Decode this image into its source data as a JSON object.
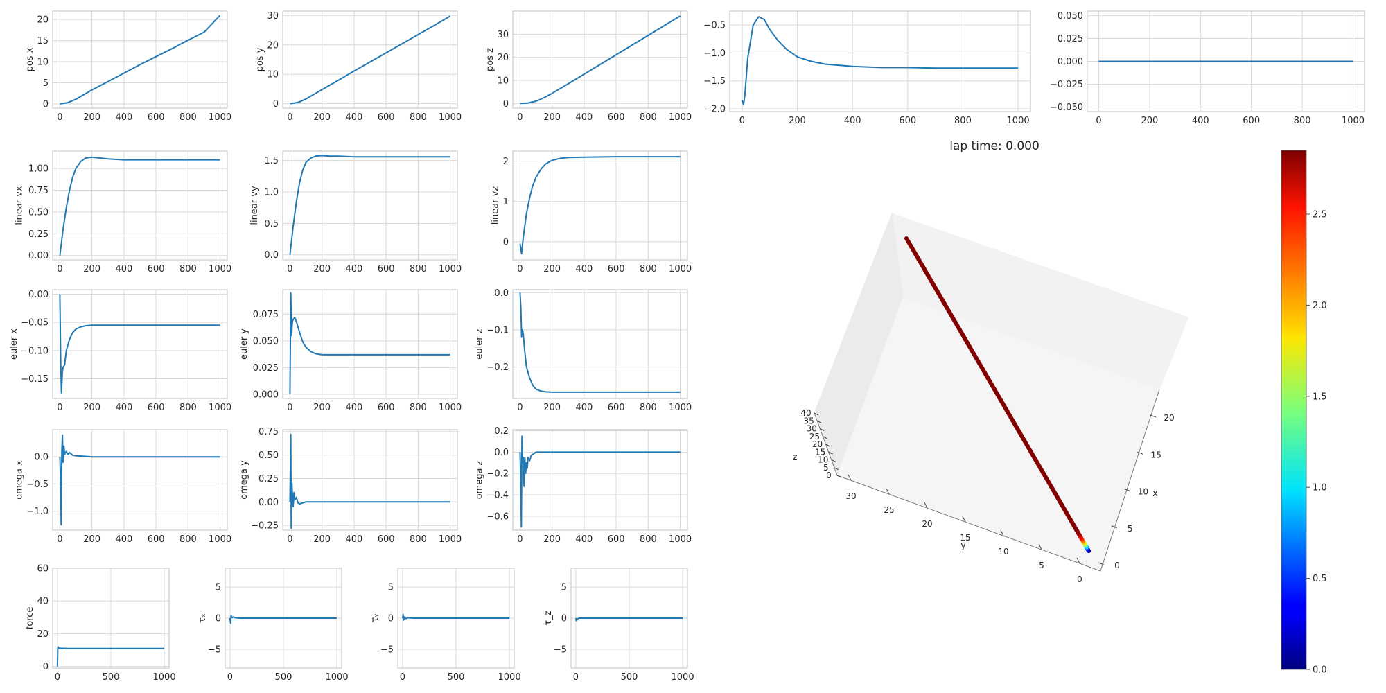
{
  "line_color": "#1f77b4",
  "grid_color": "#d8d8d8",
  "frame_color": "#cccccc",
  "chart_data": [
    {
      "type": "line",
      "id": "pos_x",
      "title": "",
      "xlabel": "",
      "ylabel": "pos x",
      "xlim": [
        -45,
        1045
      ],
      "ylim": [
        -1,
        22
      ],
      "xticks": [
        0,
        200,
        400,
        600,
        800,
        1000
      ],
      "yticks": [
        0,
        5,
        10,
        15,
        20
      ],
      "x": [
        0,
        50,
        100,
        150,
        200,
        300,
        400,
        500,
        600,
        700,
        800,
        900,
        1000
      ],
      "y": [
        0,
        0.3,
        1.1,
        2.2,
        3.3,
        5.3,
        7.3,
        9.3,
        11.2,
        13.1,
        15.1,
        17.0,
        21.0
      ]
    },
    {
      "type": "line",
      "id": "pos_y",
      "title": "",
      "xlabel": "",
      "ylabel": "pos y",
      "xlim": [
        -45,
        1045
      ],
      "ylim": [
        -1.5,
        31.5
      ],
      "xticks": [
        0,
        200,
        400,
        600,
        800,
        1000
      ],
      "yticks": [
        0,
        10,
        20,
        30
      ],
      "x": [
        0,
        50,
        100,
        150,
        200,
        300,
        400,
        500,
        600,
        700,
        800,
        900,
        1000
      ],
      "y": [
        0,
        0.4,
        1.6,
        3.2,
        4.8,
        7.9,
        11.1,
        14.2,
        17.3,
        20.4,
        23.5,
        26.6,
        29.8
      ]
    },
    {
      "type": "line",
      "id": "pos_z",
      "title": "",
      "xlabel": "",
      "ylabel": "pos z",
      "xlim": [
        -45,
        1045
      ],
      "ylim": [
        -2,
        40
      ],
      "xticks": [
        0,
        200,
        400,
        600,
        800,
        1000
      ],
      "yticks": [
        0,
        10,
        20,
        30
      ],
      "x": [
        0,
        50,
        100,
        150,
        200,
        300,
        400,
        500,
        600,
        700,
        800,
        900,
        1000
      ],
      "y": [
        0,
        0.2,
        1.0,
        2.5,
        4.4,
        8.5,
        12.7,
        16.9,
        21.1,
        25.3,
        29.5,
        33.7,
        37.9
      ]
    },
    {
      "type": "line",
      "id": "top_4",
      "title": "",
      "xlabel": "",
      "ylabel": "",
      "xlim": [
        -45,
        1045
      ],
      "ylim": [
        -2.05,
        -0.25
      ],
      "xticks": [
        0,
        200,
        400,
        600,
        800,
        1000
      ],
      "yticks": [
        -2.0,
        -1.5,
        -1.0,
        -0.5
      ],
      "x": [
        0,
        5,
        10,
        20,
        40,
        60,
        80,
        100,
        130,
        160,
        200,
        250,
        300,
        400,
        500,
        600,
        700,
        800,
        1000
      ],
      "y": [
        -1.85,
        -1.93,
        -1.75,
        -1.1,
        -0.5,
        -0.35,
        -0.4,
        -0.58,
        -0.78,
        -0.93,
        -1.07,
        -1.15,
        -1.2,
        -1.24,
        -1.26,
        -1.26,
        -1.27,
        -1.27,
        -1.27
      ]
    },
    {
      "type": "line",
      "id": "top_5",
      "title": "",
      "xlabel": "",
      "ylabel": "",
      "xlim": [
        -45,
        1045
      ],
      "ylim": [
        -0.055,
        0.055
      ],
      "xticks": [
        0,
        200,
        400,
        600,
        800,
        1000
      ],
      "yticks": [
        -0.05,
        -0.025,
        0.0,
        0.025,
        0.05
      ],
      "x": [
        0,
        1000
      ],
      "y": [
        0,
        0
      ]
    },
    {
      "type": "line",
      "id": "linear_vx",
      "title": "",
      "xlabel": "",
      "ylabel": "linear vx",
      "xlim": [
        -45,
        1045
      ],
      "ylim": [
        -0.05,
        1.2
      ],
      "xticks": [
        0,
        200,
        400,
        600,
        800,
        1000
      ],
      "yticks": [
        0,
        0.25,
        0.5,
        0.75,
        1.0
      ],
      "x": [
        0,
        20,
        40,
        60,
        80,
        100,
        130,
        160,
        200,
        250,
        300,
        400,
        600,
        800,
        1000
      ],
      "y": [
        0,
        0.3,
        0.55,
        0.75,
        0.9,
        1.0,
        1.08,
        1.12,
        1.13,
        1.12,
        1.11,
        1.1,
        1.1,
        1.1,
        1.1
      ]
    },
    {
      "type": "line",
      "id": "linear_vy",
      "title": "",
      "xlabel": "",
      "ylabel": "linear vy",
      "xlim": [
        -45,
        1045
      ],
      "ylim": [
        -0.08,
        1.65
      ],
      "xticks": [
        0,
        200,
        400,
        600,
        800,
        1000
      ],
      "yticks": [
        0,
        0.5,
        1.0,
        1.5
      ],
      "x": [
        0,
        20,
        40,
        60,
        80,
        100,
        130,
        160,
        200,
        250,
        300,
        400,
        600,
        800,
        1000
      ],
      "y": [
        0,
        0.45,
        0.85,
        1.15,
        1.35,
        1.47,
        1.54,
        1.57,
        1.58,
        1.57,
        1.57,
        1.56,
        1.56,
        1.56,
        1.56
      ]
    },
    {
      "type": "line",
      "id": "linear_vz",
      "title": "",
      "xlabel": "",
      "ylabel": "linear vz",
      "xlim": [
        -45,
        1045
      ],
      "ylim": [
        -0.45,
        2.25
      ],
      "xticks": [
        0,
        200,
        400,
        600,
        800,
        1000
      ],
      "yticks": [
        0,
        1,
        2
      ],
      "x": [
        0,
        10,
        20,
        40,
        60,
        80,
        100,
        130,
        160,
        200,
        250,
        300,
        400,
        600,
        800,
        1000
      ],
      "y": [
        -0.05,
        -0.3,
        0.1,
        0.7,
        1.1,
        1.4,
        1.6,
        1.8,
        1.93,
        2.02,
        2.07,
        2.09,
        2.1,
        2.11,
        2.11,
        2.11
      ]
    },
    {
      "type": "line",
      "id": "euler_x",
      "title": "",
      "xlabel": "",
      "ylabel": "euler x",
      "xlim": [
        -45,
        1045
      ],
      "ylim": [
        -0.185,
        0.008
      ],
      "xticks": [
        0,
        200,
        400,
        600,
        800,
        1000
      ],
      "yticks": [
        -0.15,
        -0.1,
        -0.05,
        0.0
      ],
      "x": [
        0,
        5,
        10,
        15,
        20,
        30,
        40,
        60,
        80,
        100,
        130,
        160,
        200,
        300,
        400,
        600,
        800,
        1000
      ],
      "y": [
        0,
        -0.12,
        -0.175,
        -0.14,
        -0.13,
        -0.125,
        -0.1,
        -0.08,
        -0.068,
        -0.062,
        -0.058,
        -0.056,
        -0.055,
        -0.055,
        -0.055,
        -0.055,
        -0.055,
        -0.055
      ]
    },
    {
      "type": "line",
      "id": "euler_y",
      "title": "",
      "xlabel": "",
      "ylabel": "euler y",
      "xlim": [
        -45,
        1045
      ],
      "ylim": [
        -0.004,
        0.098
      ],
      "xticks": [
        0,
        200,
        400,
        600,
        800,
        1000
      ],
      "yticks": [
        0.0,
        0.025,
        0.05,
        0.075
      ],
      "x": [
        0,
        5,
        10,
        15,
        20,
        30,
        40,
        60,
        80,
        100,
        130,
        160,
        200,
        300,
        400,
        600,
        800,
        1000
      ],
      "y": [
        0,
        0.095,
        0.055,
        0.068,
        0.07,
        0.072,
        0.068,
        0.058,
        0.049,
        0.044,
        0.04,
        0.038,
        0.037,
        0.037,
        0.037,
        0.037,
        0.037,
        0.037
      ]
    },
    {
      "type": "line",
      "id": "euler_z",
      "title": "",
      "xlabel": "",
      "ylabel": "euler z",
      "xlim": [
        -45,
        1045
      ],
      "ylim": [
        -0.285,
        0.008
      ],
      "xticks": [
        0,
        200,
        400,
        600,
        800,
        1000
      ],
      "yticks": [
        -0.2,
        -0.1,
        0.0
      ],
      "x": [
        0,
        5,
        10,
        15,
        20,
        30,
        40,
        60,
        80,
        100,
        130,
        160,
        200,
        300,
        400,
        600,
        800,
        1000
      ],
      "y": [
        0,
        -0.04,
        -0.12,
        -0.1,
        -0.11,
        -0.16,
        -0.2,
        -0.23,
        -0.25,
        -0.26,
        -0.265,
        -0.267,
        -0.268,
        -0.268,
        -0.268,
        -0.268,
        -0.268,
        -0.268
      ]
    },
    {
      "type": "line",
      "id": "omega_x",
      "title": "",
      "xlabel": "",
      "ylabel": "omega x",
      "xlim": [
        -45,
        1045
      ],
      "ylim": [
        -1.35,
        0.5
      ],
      "xticks": [
        0,
        200,
        400,
        600,
        800,
        1000
      ],
      "yticks": [
        -1.0,
        -0.5,
        0.0
      ],
      "x": [
        0,
        5,
        8,
        12,
        16,
        20,
        25,
        30,
        40,
        50,
        60,
        80,
        100,
        150,
        200,
        400,
        600,
        800,
        1000
      ],
      "y": [
        0,
        -0.5,
        -1.25,
        0.1,
        0.4,
        -0.1,
        0.2,
        0.05,
        0.1,
        0.05,
        0.08,
        0.03,
        0.02,
        0.01,
        0,
        0,
        0,
        0,
        0
      ]
    },
    {
      "type": "line",
      "id": "omega_y",
      "title": "",
      "xlabel": "",
      "ylabel": "omega y",
      "xlim": [
        -45,
        1045
      ],
      "ylim": [
        -0.3,
        0.77
      ],
      "xticks": [
        0,
        200,
        400,
        600,
        800,
        1000
      ],
      "yticks": [
        -0.25,
        0.0,
        0.25,
        0.5,
        0.75
      ],
      "x": [
        0,
        5,
        8,
        12,
        16,
        20,
        25,
        30,
        40,
        50,
        60,
        80,
        100,
        150,
        200,
        400,
        600,
        800,
        1000
      ],
      "y": [
        0,
        0.72,
        -0.28,
        0.2,
        0.05,
        -0.05,
        0.1,
        0.02,
        0.05,
        -0.01,
        -0.02,
        -0.01,
        0,
        0,
        0,
        0,
        0,
        0,
        0
      ]
    },
    {
      "type": "line",
      "id": "omega_z",
      "title": "",
      "xlabel": "",
      "ylabel": "omega z",
      "xlim": [
        -45,
        1045
      ],
      "ylim": [
        -0.73,
        0.21
      ],
      "xticks": [
        0,
        200,
        400,
        600,
        800,
        1000
      ],
      "yticks": [
        -0.6,
        -0.4,
        -0.2,
        0.0,
        0.2
      ],
      "x": [
        0,
        5,
        8,
        12,
        16,
        20,
        25,
        30,
        35,
        40,
        45,
        50,
        60,
        70,
        80,
        100,
        150,
        200,
        400,
        600,
        800,
        1000
      ],
      "y": [
        0,
        -0.3,
        -0.7,
        0.15,
        -0.1,
        -0.05,
        -0.32,
        -0.05,
        -0.2,
        -0.1,
        -0.15,
        -0.05,
        -0.08,
        -0.03,
        -0.02,
        0,
        0,
        0,
        0,
        0,
        0,
        0
      ]
    },
    {
      "type": "line",
      "id": "force",
      "title": "",
      "xlabel": "",
      "ylabel": "force",
      "xlim": [
        -45,
        1045
      ],
      "ylim": [
        -1,
        60
      ],
      "xticks": [
        0,
        500,
        1000
      ],
      "yticks": [
        0,
        20,
        40,
        60
      ],
      "x": [
        0,
        3,
        6,
        10,
        20,
        40,
        100,
        200,
        400,
        600,
        800,
        1000
      ],
      "y": [
        0,
        11,
        12,
        11.5,
        11.2,
        11.1,
        11,
        11,
        11,
        11,
        11,
        11
      ]
    },
    {
      "type": "line",
      "id": "tau_x",
      "title": "",
      "xlabel": "",
      "ylabel": "τₓ",
      "xlim": [
        -45,
        1045
      ],
      "ylim": [
        -8,
        8
      ],
      "xticks": [
        0,
        500,
        1000
      ],
      "yticks": [
        -5,
        0,
        5
      ],
      "x": [
        0,
        5,
        10,
        20,
        30,
        50,
        100,
        200,
        500,
        1000
      ],
      "y": [
        0,
        -0.8,
        0.4,
        0.1,
        0.2,
        0.05,
        0,
        0,
        0,
        0
      ]
    },
    {
      "type": "line",
      "id": "tau_y",
      "title": "",
      "xlabel": "",
      "ylabel": "τᵧ",
      "xlim": [
        -45,
        1045
      ],
      "ylim": [
        -8,
        8
      ],
      "xticks": [
        0,
        500,
        1000
      ],
      "yticks": [
        -5,
        0,
        5
      ],
      "x": [
        0,
        5,
        10,
        20,
        30,
        50,
        100,
        200,
        500,
        1000
      ],
      "y": [
        0,
        0.6,
        -0.3,
        0.2,
        -0.1,
        0.05,
        0,
        0,
        0,
        0
      ]
    },
    {
      "type": "line",
      "id": "tau_z",
      "title": "",
      "xlabel": "",
      "ylabel": "τ_z",
      "xlim": [
        -45,
        1045
      ],
      "ylim": [
        -8,
        8
      ],
      "xticks": [
        0,
        500,
        1000
      ],
      "yticks": [
        -5,
        0,
        5
      ],
      "x": [
        0,
        5,
        10,
        20,
        30,
        50,
        100,
        200,
        500,
        1000
      ],
      "y": [
        0,
        -0.4,
        -0.2,
        -0.1,
        0,
        0,
        0,
        0,
        0,
        0
      ]
    }
  ],
  "trajectory": {
    "lap_time_label": "lap time: 0.000",
    "z_label": "z",
    "y_label": "y",
    "x_label": "x",
    "z_ticks": [
      "0",
      "5",
      "10",
      "15",
      "20",
      "25",
      "30",
      "35",
      "40"
    ],
    "y_ticks": [
      "30",
      "25",
      "20",
      "15",
      "10",
      "5",
      "0"
    ],
    "x_ticks": [
      "0",
      "5",
      "10",
      "15",
      "20"
    ],
    "colorbar_ticks": [
      "0.0",
      "0.5",
      "1.0",
      "1.5",
      "2.0",
      "2.5"
    ],
    "colorbar_min": 0.0,
    "colorbar_max": 2.85,
    "speed_profile": [
      0.05,
      0.4,
      0.9,
      1.4,
      1.8,
      2.1,
      2.3,
      2.5,
      2.65,
      2.75,
      2.8,
      2.82,
      2.83,
      2.84,
      2.84,
      2.84
    ]
  }
}
